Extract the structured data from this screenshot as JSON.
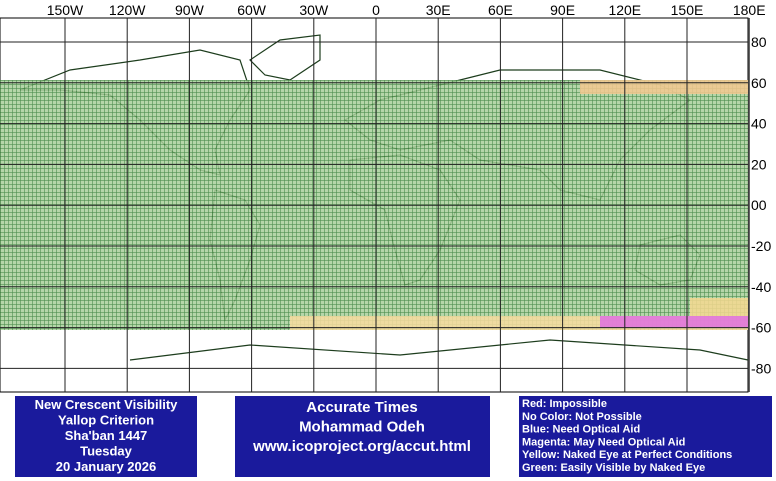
{
  "map": {
    "lon_labels": [
      "150W",
      "120W",
      "90W",
      "60W",
      "30W",
      "0",
      "30E",
      "60E",
      "90E",
      "120E",
      "150E",
      "180E"
    ],
    "lat_labels": [
      "80",
      "60",
      "40",
      "20",
      "00",
      "-20",
      "-40",
      "-60",
      "-80"
    ]
  },
  "info_box": {
    "lines": [
      "New Crescent Visibility",
      "Yallop Criterion",
      "Sha'ban 1447",
      "Tuesday",
      "20 January 2026"
    ]
  },
  "credit_box": {
    "lines": [
      "Accurate Times",
      "Mohammad Odeh",
      "www.icoproject.org/accut.html"
    ]
  },
  "legend_box": {
    "lines": [
      "Red: Impossible",
      "No Color: Not Possible",
      "Blue: Need Optical Aid",
      "Magenta: May Need Optical Aid",
      "Yellow: Naked Eye at Perfect Conditions",
      "Green: Easily Visible by Naked Eye"
    ]
  }
}
